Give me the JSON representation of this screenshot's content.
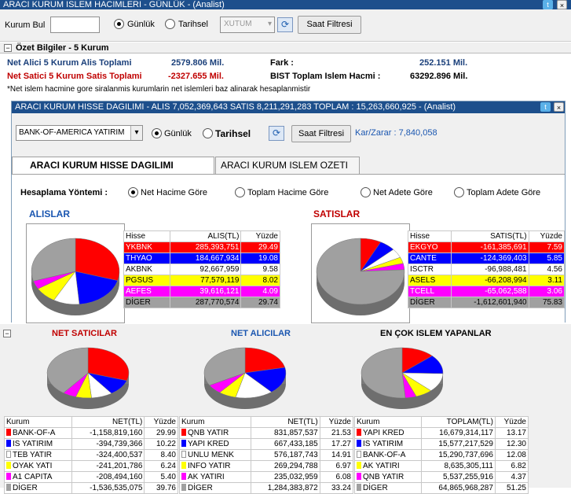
{
  "window": {
    "title": "ARACI KURUM ISLEM HACIMLERI - GÜNLÜK - (Analist)"
  },
  "topbar": {
    "kurum_label": "Kurum Bul",
    "kurum_value": "",
    "gunluk_label": "Günlük",
    "tarihsel_label": "Tarihsel",
    "xutum_placeholder": "XUTUM",
    "saat_filtresi": "Saat Filtresi"
  },
  "summary": {
    "header": "Özet Bilgiler - 5 Kurum",
    "alici_label": "Net Alici 5 Kurum Alis Toplami",
    "alici_value": "2579.806 Mil.",
    "satici_label": "Net Satici 5 Kurum Satis Toplami",
    "satici_value": "-2327.655 Mil.",
    "fark_label": "Fark :",
    "fark_value": "252.151 Mil.",
    "bist_label": "BIST Toplam Islem Hacmi :",
    "bist_value": "63292.896 Mil.",
    "note": "*Net islem hacmine gore siralanmis kurumlarin net islemleri baz alinarak hesaplanmistir"
  },
  "panel": {
    "title": "ARACI KURUM HISSE DAGILIMI - ALIS 7,052,369,643  SATIS 8,211,291,283  TOPLAM : 15,263,660,925 - (Analist)",
    "broker_select": "BANK-OF-AMERICA YATIRIM",
    "gunluk_label": "Günlük",
    "tarihsel_label": "Tarihsel",
    "saat_filtresi": "Saat Filtresi",
    "kar_zarar": "Kar/Zarar : 7,840,058",
    "tab1": "ARACI KURUM HISSE DAGILIMI",
    "tab2": "ARACI KURUM ISLEM OZETI",
    "method_label": "Hesaplama Yöntemi :",
    "methods": [
      "Net Hacime Göre",
      "Toplam Hacime Göre",
      "Net Adete Göre",
      "Toplam Adete Göre"
    ],
    "alislar_title": "ALISLAR",
    "satislar_title": "SATISLAR",
    "alis_headers": [
      "Hisse",
      "ALIS(TL)",
      "Yüzde"
    ],
    "alis_rows": [
      {
        "name": "YKBNK",
        "value": "285,393,751",
        "pct": "29.49",
        "color": "#ff0000",
        "fg": "#ffffff"
      },
      {
        "name": "THYAO",
        "value": "184,667,934",
        "pct": "19.08",
        "color": "#0000ff",
        "fg": "#ffffff"
      },
      {
        "name": "AKBNK",
        "value": "92,667,959",
        "pct": "9.58",
        "color": "#ffffff",
        "fg": "#000000"
      },
      {
        "name": "PGSUS",
        "value": "77,579,119",
        "pct": "8.02",
        "color": "#ffff00",
        "fg": "#000000"
      },
      {
        "name": "AEFES",
        "value": "39,616,121",
        "pct": "4.09",
        "color": "#ff00ff",
        "fg": "#ffffff"
      },
      {
        "name": "DİGER",
        "value": "287,770,574",
        "pct": "29.74",
        "color": "#a0a0a0",
        "fg": "#000000"
      }
    ],
    "satis_headers": [
      "Hisse",
      "SATIS(TL)",
      "Yüzde"
    ],
    "satis_rows": [
      {
        "name": "EKGYO",
        "value": "-161,385,691",
        "pct": "7.59",
        "color": "#ff0000",
        "fg": "#ffffff"
      },
      {
        "name": "CANTE",
        "value": "-124,369,403",
        "pct": "5.85",
        "color": "#0000ff",
        "fg": "#ffffff"
      },
      {
        "name": "ISCTR",
        "value": "-96,988,481",
        "pct": "4.56",
        "color": "#ffffff",
        "fg": "#000000"
      },
      {
        "name": "ASELS",
        "value": "-66,208,994",
        "pct": "3.11",
        "color": "#ffff00",
        "fg": "#000000"
      },
      {
        "name": "TCELL",
        "value": "-65,062,588",
        "pct": "3.06",
        "color": "#ff00ff",
        "fg": "#ffffff"
      },
      {
        "name": "DİGER",
        "value": "-1,612,601,940",
        "pct": "75.83",
        "color": "#a0a0a0",
        "fg": "#000000"
      }
    ]
  },
  "bottom": {
    "net_saticilar_title": "NET SATICILAR",
    "net_alicilar_title": "NET ALICILAR",
    "en_cok_title": "EN ÇOK ISLEM YAPANLAR",
    "sat_headers": [
      "Kurum",
      "NET(TL)",
      "Yüzde"
    ],
    "sat_rows": [
      {
        "name": "BANK-OF-A",
        "value": "-1,158,819,160",
        "pct": "29.99",
        "color": "#ff0000"
      },
      {
        "name": "IS YATIRIM",
        "value": "-394,739,366",
        "pct": "10.22",
        "color": "#0000ff"
      },
      {
        "name": "TEB YATIR",
        "value": "-324,400,537",
        "pct": "8.40",
        "color": "#ffffff"
      },
      {
        "name": "OYAK YATI",
        "value": "-241,201,786",
        "pct": "6.24",
        "color": "#ffff00"
      },
      {
        "name": "A1 CAPITA",
        "value": "-208,494,160",
        "pct": "5.40",
        "color": "#ff00ff"
      },
      {
        "name": "DİGER",
        "value": "-1,536,535,075",
        "pct": "39.76",
        "color": "#a0a0a0"
      }
    ],
    "al_headers": [
      "Kurum",
      "NET(TL)",
      "Yüzde"
    ],
    "al_rows": [
      {
        "name": "QNB YATIR",
        "value": "831,857,537",
        "pct": "21.53",
        "color": "#ff0000"
      },
      {
        "name": "YAPI KRED",
        "value": "667,433,185",
        "pct": "17.27",
        "color": "#0000ff"
      },
      {
        "name": "UNLU MENK",
        "value": "576,187,743",
        "pct": "14.91",
        "color": "#ffffff"
      },
      {
        "name": "INFO YATIR",
        "value": "269,294,788",
        "pct": "6.97",
        "color": "#ffff00"
      },
      {
        "name": "AK YATIRI",
        "value": "235,032,959",
        "pct": "6.08",
        "color": "#ff00ff"
      },
      {
        "name": "DİGER",
        "value": "1,284,383,872",
        "pct": "33.24",
        "color": "#a0a0a0"
      }
    ],
    "top_headers": [
      "Kurum",
      "TOPLAM(TL)",
      "Yüzde"
    ],
    "top_rows": [
      {
        "name": "YAPI KRED",
        "value": "16,679,314,117",
        "pct": "13.17",
        "color": "#ff0000"
      },
      {
        "name": "IS YATIRIM",
        "value": "15,577,217,529",
        "pct": "12.30",
        "color": "#0000ff"
      },
      {
        "name": "BANK-OF-A",
        "value": "15,290,737,696",
        "pct": "12.08",
        "color": "#ffffff"
      },
      {
        "name": "AK YATIRI",
        "value": "8,635,305,111",
        "pct": "6.82",
        "color": "#ffff00"
      },
      {
        "name": "QNB YATIR",
        "value": "5,537,255,916",
        "pct": "4.37",
        "color": "#ff00ff"
      },
      {
        "name": "DİGER",
        "value": "64,865,968,287",
        "pct": "51.25",
        "color": "#a0a0a0"
      }
    ]
  }
}
